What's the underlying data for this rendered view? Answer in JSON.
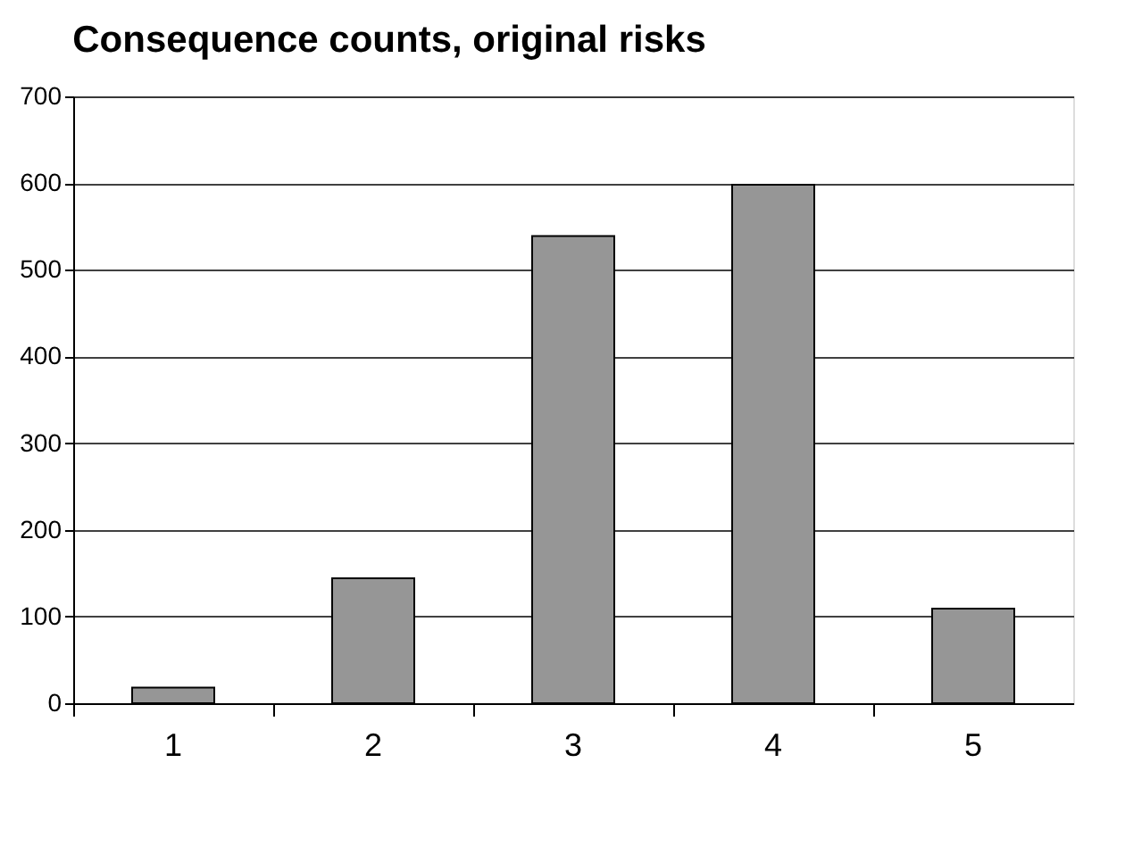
{
  "chart_data": {
    "type": "bar",
    "title": "Consequence counts, original risks",
    "categories": [
      "1",
      "2",
      "3",
      "4",
      "5"
    ],
    "values": [
      18,
      144,
      539,
      598,
      109
    ],
    "color": "#969696",
    "ylim": [
      0,
      700
    ],
    "yticks": [
      0,
      100,
      200,
      300,
      400,
      500,
      600,
      700
    ],
    "grid": "y"
  }
}
